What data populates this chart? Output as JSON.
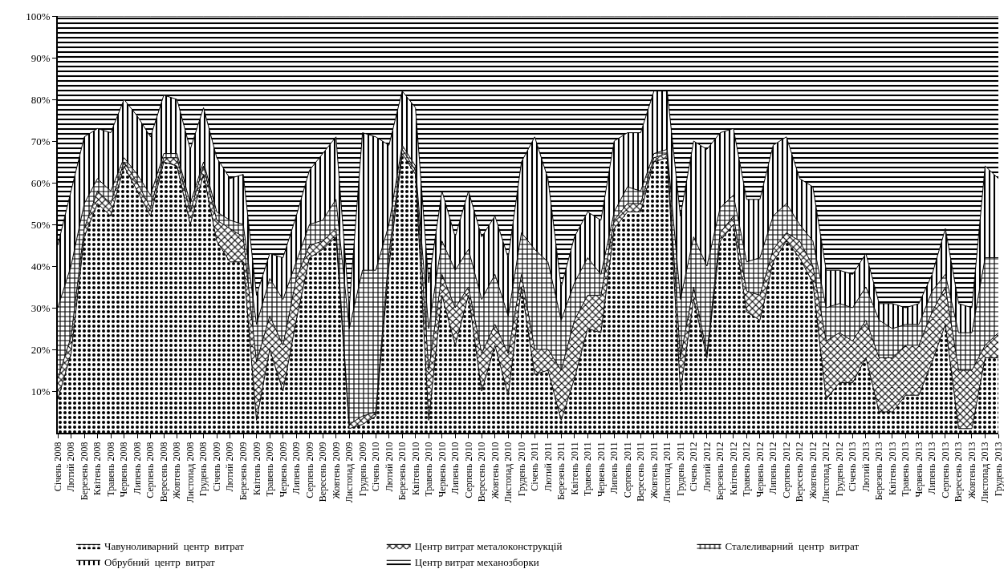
{
  "chart_data": {
    "type": "area",
    "stacked": true,
    "legend": "bottom",
    "categories": [
      "Січень 2008",
      "Лютий 2008",
      "Березень 2008",
      "Квітень 2008",
      "Травень 2008",
      "Червень 2008",
      "Липень 2008",
      "Серпень 2008",
      "Вересень 2008",
      "Жовтень 2008",
      "Листопад 2008",
      "Грудень 2008",
      "Січень 2009",
      "Лютий 2009",
      "Березень 2009",
      "Квітень 2009",
      "Травень 2009",
      "Червень 2009",
      "Липень 2009",
      "Серпень 2009",
      "Вересень 2009",
      "Жовтень 2009",
      "Листопад 2009",
      "Грудень 2009",
      "Січень 2010",
      "Лютий 2010",
      "Березень 2010",
      "Квітень 2010",
      "Травень 2010",
      "Червень 2010",
      "Липень 2010",
      "Серпень 2010",
      "Вересень 2010",
      "Жовтень 2010",
      "Листопад 2010",
      "Грудень 2010",
      "Січень 2011",
      "Лютий 2011",
      "Березень 2011",
      "Квітень 2011",
      "Травень 2011",
      "Червень 2011",
      "Липень 2011",
      "Серпень 2011",
      "Вересень 2011",
      "Жовтень 2011",
      "Листопад 2011",
      "Грудень 2011",
      "Січень 2012",
      "Лютий 2012",
      "Березень 2012",
      "Квітень 2012",
      "Травень 2012",
      "Червень 2012",
      "Липень 2012",
      "Серпень 2012",
      "Вересень 2012",
      "Жовтень 2012",
      "Листопад 2012",
      "Грудень 2012",
      "Січень 2013",
      "Лютий 2013",
      "Березень 2013",
      "Квітень 2013",
      "Травень 2013",
      "Червень 2013",
      "Липень 2013",
      "Серпень 2013",
      "Вересень 2013",
      "Жовтень 2013",
      "Листопад 2013",
      "Грудень 2013"
    ],
    "ylim": [
      0,
      100
    ],
    "yticks": [
      {
        "value": 10,
        "label": "10%"
      },
      {
        "value": 20,
        "label": "20%"
      },
      {
        "value": 30,
        "label": "30%"
      },
      {
        "value": 40,
        "label": "40%"
      },
      {
        "value": 50,
        "label": "50%"
      },
      {
        "value": 60,
        "label": "60%"
      },
      {
        "value": 70,
        "label": "70%"
      },
      {
        "value": 80,
        "label": "80%"
      },
      {
        "value": 90,
        "label": "90%"
      },
      {
        "value": 100,
        "label": "100%"
      }
    ],
    "series": [
      {
        "name": "Чавуноливарний  центр  витрат",
        "color": "#000000",
        "values": [
          8,
          19,
          47,
          55,
          52,
          64,
          58,
          52,
          65,
          64,
          50,
          62,
          46,
          41,
          41,
          3,
          20,
          10,
          27,
          42,
          44,
          47,
          1,
          2,
          4,
          40,
          67,
          62,
          3,
          33,
          21,
          33,
          10,
          21,
          9,
          35,
          14,
          15,
          3,
          13,
          25,
          24,
          49,
          53,
          53,
          65,
          66,
          10,
          32,
          18,
          46,
          50,
          29,
          27,
          41,
          46,
          42,
          36,
          8,
          12,
          12,
          18,
          5,
          5,
          9,
          9,
          17,
          26,
          1,
          1,
          18,
          18
        ]
      },
      {
        "name": "Центр витрат металоконструкцій",
        "color": "#000000",
        "values": [
          5,
          4,
          2,
          3,
          3,
          1,
          2,
          2,
          1,
          2,
          3,
          2,
          5,
          8,
          6,
          14,
          8,
          11,
          10,
          3,
          2,
          2,
          1,
          2,
          1,
          3,
          1,
          1,
          12,
          5,
          9,
          2,
          9,
          5,
          10,
          3,
          6,
          5,
          12,
          14,
          8,
          9,
          2,
          2,
          2,
          1,
          1,
          8,
          3,
          1,
          2,
          2,
          5,
          6,
          3,
          2,
          4,
          4,
          14,
          12,
          10,
          9,
          13,
          13,
          12,
          12,
          12,
          9,
          14,
          14,
          3,
          6
        ]
      },
      {
        "name": "Сталеливарний  центр  витрат",
        "color": "#000000",
        "values": [
          17,
          17,
          6,
          3,
          3,
          1,
          2,
          3,
          1,
          1,
          2,
          1,
          2,
          2,
          3,
          9,
          9,
          11,
          4,
          5,
          5,
          7,
          23,
          35,
          34,
          7,
          1,
          1,
          10,
          8,
          9,
          9,
          13,
          12,
          9,
          10,
          24,
          21,
          12,
          9,
          9,
          5,
          2,
          4,
          3,
          1,
          1,
          14,
          12,
          21,
          6,
          5,
          7,
          9,
          8,
          7,
          4,
          6,
          8,
          7,
          8,
          8,
          9,
          7,
          5,
          5,
          5,
          3,
          9,
          9,
          21,
          18
        ]
      },
      {
        "name": "Обрубний  центр  витрат",
        "color": "#000000",
        "values": [
          15,
          18,
          16,
          12,
          14,
          14,
          14,
          14,
          14,
          13,
          13,
          13,
          13,
          10,
          12,
          7,
          6,
          10,
          11,
          13,
          16,
          15,
          5,
          33,
          32,
          19,
          13,
          14,
          11,
          12,
          8,
          14,
          15,
          14,
          14,
          17,
          27,
          20,
          8,
          11,
          11,
          13,
          17,
          13,
          14,
          15,
          14,
          20,
          23,
          28,
          18,
          16,
          15,
          14,
          17,
          16,
          11,
          13,
          9,
          8,
          8,
          8,
          4,
          6,
          4,
          5,
          4,
          11,
          7,
          6,
          22,
          19
        ]
      },
      {
        "name": "Центр витрат механозборки",
        "color": "#000000",
        "values": [
          55,
          42,
          29,
          27,
          28,
          20,
          24,
          29,
          19,
          20,
          32,
          22,
          34,
          39,
          38,
          67,
          57,
          58,
          48,
          37,
          33,
          29,
          70,
          28,
          29,
          31,
          18,
          22,
          64,
          42,
          53,
          42,
          53,
          48,
          58,
          35,
          29,
          39,
          65,
          53,
          47,
          49,
          30,
          28,
          28,
          18,
          18,
          48,
          30,
          32,
          28,
          27,
          44,
          44,
          31,
          29,
          39,
          41,
          61,
          61,
          62,
          57,
          69,
          69,
          70,
          69,
          62,
          51,
          69,
          70,
          36,
          39
        ]
      }
    ]
  }
}
